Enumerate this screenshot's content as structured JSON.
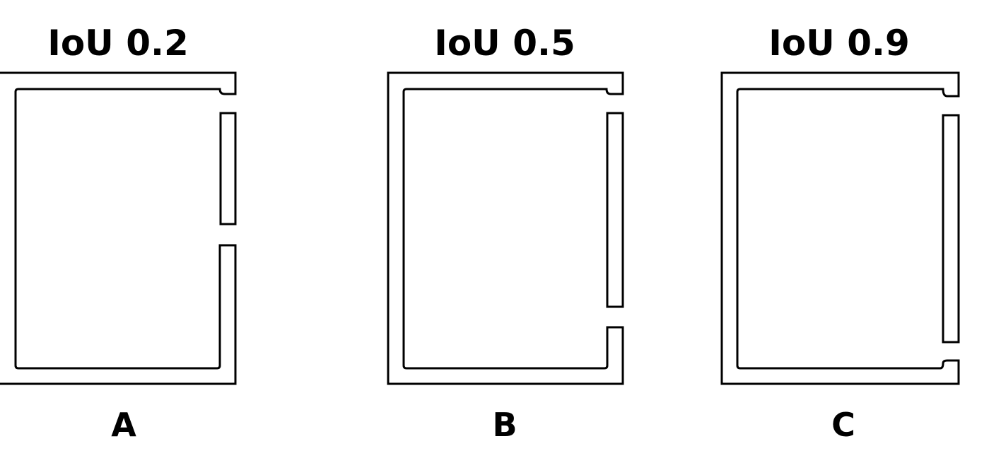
{
  "panels": [
    {
      "id": "A",
      "title": "IoU 0.2",
      "label": "A",
      "iou": 0.2
    },
    {
      "id": "B",
      "title": "IoU 0.5",
      "label": "B",
      "iou": 0.5
    },
    {
      "id": "C",
      "title": "IoU 0.9",
      "label": "C",
      "iou": 0.9
    }
  ],
  "colors": {
    "stroke": "#000000",
    "background": "#ffffff"
  }
}
